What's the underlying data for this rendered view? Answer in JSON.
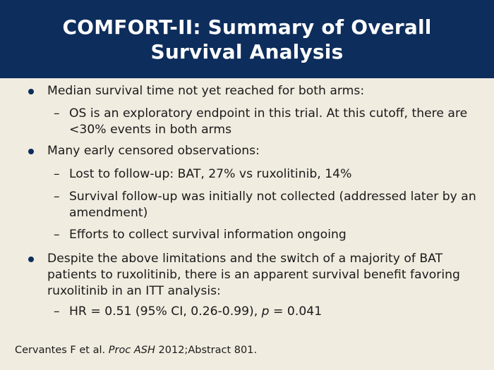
{
  "title": "COMFORT-II: Summary of Overall Survival Analysis",
  "bullets": [
    {
      "text": "Median survival time not yet reached for both arms:",
      "subs": [
        "OS is an exploratory endpoint in this trial. At this cutoff, there are <30% events in both arms"
      ]
    },
    {
      "text": "Many early censored observations:",
      "subs": [
        "Lost to follow-up: BAT, 27% vs ruxolitinib, 14%",
        "Survival follow-up was initially not collected (addressed later by an amendment)",
        "Efforts to collect survival information ongoing"
      ]
    },
    {
      "text": "Despite the above limitations and the switch of a majority of BAT patients to ruxolitinib, there is an apparent survival benefit favoring ruxolitinib in an ITT analysis:",
      "subs": []
    }
  ],
  "hr_line": {
    "prefix": "HR = 0.51 (95% CI, 0.26-0.99), ",
    "p_symbol": "p",
    "suffix": " = 0.041"
  },
  "citation": {
    "authors": "Cervantes F et al. ",
    "journal": "Proc ASH",
    "rest": " 2012;Abstract 801."
  },
  "dash_glyph": "–",
  "colors": {
    "title_bar": "#0d2d5c",
    "background": "#f1ece0",
    "bullet_dot": "#0d2d5c"
  }
}
